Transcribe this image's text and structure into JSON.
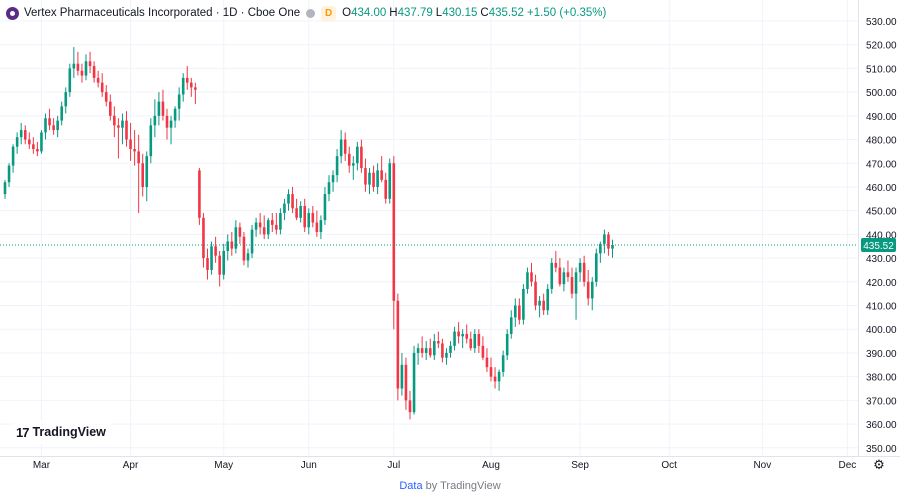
{
  "legend": {
    "title": "Vertex Pharmaceuticals Incorporated · 1D · Cboe One",
    "badge": "D",
    "o_label": "O",
    "o_value": "434.00",
    "h_label": "H",
    "h_value": "437.79",
    "l_label": "L",
    "l_value": "430.15",
    "c_label": "C",
    "c_value": "435.52 +1.50 (+0.35%)"
  },
  "branding": {
    "logo_mark": "17",
    "logo_text": "TradingView"
  },
  "footer": {
    "data_link": "Data",
    "by_text": "by TradingView"
  },
  "colors": {
    "up": "#089981",
    "down": "#f23645",
    "grid": "#f0f3fa",
    "axis_text": "#131722",
    "price_line": "#089981"
  },
  "icons": {
    "settings": "gear-icon",
    "brand": "tradingview-logo-icon"
  },
  "chart_data": {
    "type": "candlestick",
    "symbol": "Vertex Pharmaceuticals Incorporated",
    "interval": "1D",
    "exchange": "Cboe One",
    "last_price": 435.52,
    "ylim": [
      345,
      533
    ],
    "yticks": [
      350,
      360,
      370,
      380,
      390,
      400,
      410,
      420,
      430,
      440,
      450,
      460,
      470,
      480,
      490,
      500,
      510,
      520,
      530
    ],
    "x_month_labels": [
      "Mar",
      "Apr",
      "May",
      "Jun",
      "Jul",
      "Aug",
      "Sep",
      "Oct",
      "Nov",
      "Dec"
    ],
    "x_month_bar_index": [
      9,
      31,
      54,
      75,
      96,
      120,
      142,
      164,
      187,
      208
    ],
    "grid": true,
    "candles": [
      [
        457,
        463,
        455,
        462
      ],
      [
        462,
        470,
        460,
        469
      ],
      [
        469,
        478,
        466,
        477
      ],
      [
        477,
        483,
        474,
        481
      ],
      [
        481,
        487,
        478,
        484
      ],
      [
        484,
        486,
        478,
        480
      ],
      [
        480,
        483,
        476,
        478
      ],
      [
        478,
        481,
        474,
        476
      ],
      [
        476,
        479,
        473,
        475
      ],
      [
        475,
        484,
        474,
        483
      ],
      [
        483,
        491,
        480,
        489
      ],
      [
        489,
        493,
        484,
        486
      ],
      [
        486,
        489,
        482,
        484
      ],
      [
        484,
        490,
        481,
        488
      ],
      [
        488,
        496,
        486,
        494
      ],
      [
        494,
        502,
        491,
        500
      ],
      [
        500,
        512,
        498,
        510
      ],
      [
        510,
        519,
        506,
        512
      ],
      [
        512,
        517,
        507,
        509
      ],
      [
        509,
        512,
        504,
        507
      ],
      [
        507,
        516,
        505,
        513
      ],
      [
        513,
        517,
        508,
        511
      ],
      [
        511,
        513,
        504,
        506
      ],
      [
        506,
        509,
        502,
        504
      ],
      [
        504,
        508,
        498,
        500
      ],
      [
        500,
        503,
        494,
        496
      ],
      [
        496,
        499,
        488,
        490
      ],
      [
        490,
        494,
        481,
        486
      ],
      [
        486,
        489,
        472,
        485
      ],
      [
        485,
        491,
        478,
        488
      ],
      [
        488,
        492,
        477,
        480
      ],
      [
        480,
        487,
        471,
        476
      ],
      [
        476,
        484,
        469,
        475
      ],
      [
        475,
        482,
        449,
        470
      ],
      [
        470,
        474,
        456,
        460
      ],
      [
        460,
        475,
        454,
        473
      ],
      [
        473,
        489,
        470,
        486
      ],
      [
        486,
        497,
        481,
        490
      ],
      [
        490,
        500,
        486,
        496
      ],
      [
        496,
        501,
        488,
        490
      ],
      [
        490,
        493,
        480,
        485
      ],
      [
        485,
        490,
        478,
        488
      ],
      [
        488,
        494,
        485,
        493
      ],
      [
        493,
        502,
        488,
        499
      ],
      [
        499,
        508,
        496,
        506
      ],
      [
        506,
        511,
        501,
        504
      ],
      [
        504,
        506,
        498,
        502
      ],
      [
        502,
        504,
        495,
        501
      ],
      [
        467,
        468,
        444,
        447
      ],
      [
        447,
        449,
        426,
        430
      ],
      [
        430,
        434,
        421,
        425
      ],
      [
        425,
        437,
        423,
        435
      ],
      [
        435,
        439,
        428,
        431
      ],
      [
        431,
        433,
        418,
        423
      ],
      [
        423,
        436,
        421,
        433
      ],
      [
        433,
        440,
        429,
        437
      ],
      [
        437,
        441,
        431,
        434
      ],
      [
        434,
        446,
        432,
        443
      ],
      [
        443,
        445,
        436,
        439
      ],
      [
        439,
        441,
        427,
        429
      ],
      [
        429,
        434,
        426,
        432
      ],
      [
        432,
        444,
        430,
        442
      ],
      [
        442,
        447,
        439,
        445
      ],
      [
        445,
        449,
        440,
        443
      ],
      [
        443,
        448,
        438,
        440
      ],
      [
        440,
        447,
        438,
        446
      ],
      [
        446,
        449,
        441,
        444
      ],
      [
        444,
        449,
        440,
        442
      ],
      [
        442,
        451,
        440,
        449
      ],
      [
        449,
        455,
        446,
        453
      ],
      [
        453,
        459,
        450,
        457
      ],
      [
        457,
        460,
        449,
        451
      ],
      [
        451,
        455,
        446,
        447
      ],
      [
        447,
        454,
        445,
        452
      ],
      [
        452,
        455,
        441,
        443
      ],
      [
        443,
        451,
        440,
        449
      ],
      [
        449,
        452,
        443,
        445
      ],
      [
        445,
        450,
        439,
        441
      ],
      [
        441,
        448,
        438,
        446
      ],
      [
        446,
        460,
        444,
        457
      ],
      [
        457,
        465,
        454,
        462
      ],
      [
        462,
        467,
        458,
        465
      ],
      [
        465,
        476,
        462,
        473
      ],
      [
        473,
        484,
        470,
        480
      ],
      [
        480,
        483,
        471,
        474
      ],
      [
        474,
        477,
        466,
        469
      ],
      [
        469,
        473,
        463,
        470
      ],
      [
        470,
        479,
        467,
        477
      ],
      [
        477,
        480,
        466,
        468
      ],
      [
        468,
        472,
        458,
        461
      ],
      [
        461,
        468,
        457,
        466
      ],
      [
        466,
        469,
        458,
        460
      ],
      [
        460,
        470,
        457,
        467
      ],
      [
        467,
        473,
        462,
        463
      ],
      [
        463,
        466,
        453,
        455
      ],
      [
        455,
        472,
        453,
        470
      ],
      [
        470,
        473,
        400,
        412
      ],
      [
        412,
        415,
        370,
        375
      ],
      [
        375,
        390,
        372,
        385
      ],
      [
        385,
        388,
        366,
        370
      ],
      [
        370,
        374,
        362,
        365
      ],
      [
        365,
        393,
        364,
        390
      ],
      [
        390,
        394,
        385,
        392
      ],
      [
        392,
        397,
        388,
        390
      ],
      [
        390,
        395,
        387,
        392
      ],
      [
        392,
        396,
        388,
        389
      ],
      [
        389,
        398,
        387,
        395
      ],
      [
        395,
        399,
        392,
        394
      ],
      [
        394,
        396,
        386,
        388
      ],
      [
        388,
        392,
        385,
        390
      ],
      [
        390,
        395,
        388,
        393
      ],
      [
        393,
        401,
        391,
        399
      ],
      [
        399,
        403,
        394,
        397
      ],
      [
        397,
        400,
        392,
        398
      ],
      [
        398,
        402,
        394,
        396
      ],
      [
        396,
        399,
        391,
        392
      ],
      [
        392,
        400,
        390,
        398
      ],
      [
        398,
        400,
        390,
        393
      ],
      [
        393,
        397,
        387,
        388
      ],
      [
        388,
        392,
        382,
        384
      ],
      [
        384,
        388,
        378,
        380
      ],
      [
        380,
        384,
        375,
        378
      ],
      [
        378,
        383,
        374,
        382
      ],
      [
        382,
        391,
        380,
        389
      ],
      [
        389,
        400,
        387,
        398
      ],
      [
        398,
        408,
        396,
        405
      ],
      [
        405,
        413,
        401,
        410
      ],
      [
        410,
        413,
        402,
        404
      ],
      [
        404,
        419,
        402,
        417
      ],
      [
        417,
        426,
        415,
        424
      ],
      [
        424,
        428,
        418,
        420
      ],
      [
        420,
        423,
        408,
        410
      ],
      [
        410,
        414,
        405,
        412
      ],
      [
        412,
        415,
        406,
        408
      ],
      [
        408,
        419,
        406,
        417
      ],
      [
        417,
        430,
        415,
        428
      ],
      [
        428,
        433,
        424,
        426
      ],
      [
        426,
        430,
        418,
        419
      ],
      [
        419,
        426,
        416,
        424
      ],
      [
        424,
        429,
        420,
        422
      ],
      [
        422,
        426,
        413,
        415
      ],
      [
        415,
        426,
        404,
        424
      ],
      [
        424,
        430,
        420,
        428
      ],
      [
        428,
        431,
        418,
        420
      ],
      [
        420,
        425,
        410,
        413
      ],
      [
        413,
        422,
        408,
        420
      ],
      [
        420,
        434,
        418,
        432
      ],
      [
        432,
        437,
        428,
        436
      ],
      [
        436,
        442,
        432,
        440
      ],
      [
        440,
        441,
        431,
        434
      ],
      [
        434,
        437.79,
        430.15,
        435.52
      ]
    ]
  }
}
